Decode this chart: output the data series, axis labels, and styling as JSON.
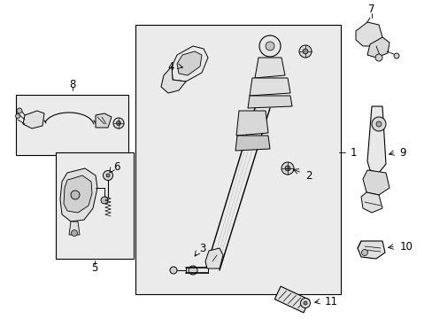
{
  "bg_color": "#ffffff",
  "box_bg": "#ebebeb",
  "fig_width": 4.89,
  "fig_height": 3.6,
  "dpi": 100,
  "lc": "#000000",
  "lw": 0.7,
  "fs": 8.5
}
